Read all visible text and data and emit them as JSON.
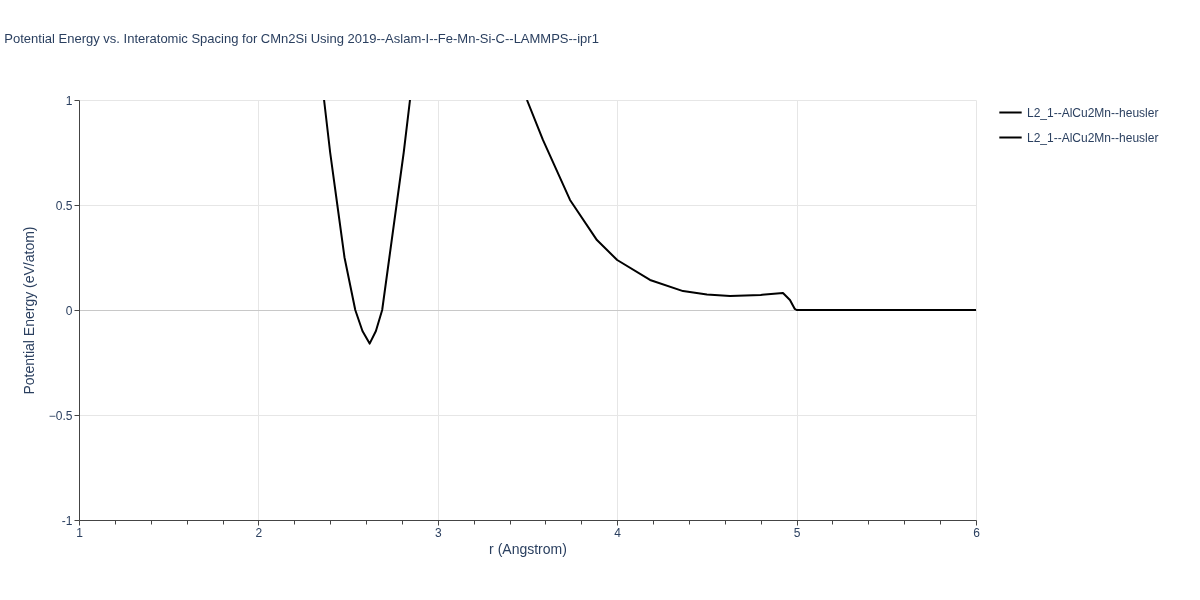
{
  "chart_data": {
    "type": "line",
    "title": "Potential Energy vs. Interatomic Spacing for CMn2Si Using 2019--Aslam-I--Fe-Mn-Si-C--LAMMPS--ipr1",
    "xlabel": "r (Angstrom)",
    "ylabel": "Potential Energy (eV/atom)",
    "xlim": [
      1,
      6
    ],
    "ylim": [
      -1,
      1
    ],
    "xticks": [
      1,
      {
        "value": 1.2,
        "label": null
      },
      {
        "value": 1.4,
        "label": null
      },
      {
        "value": 1.6,
        "label": null
      },
      {
        "value": 1.8,
        "label": null
      },
      2,
      {
        "value": 2.2,
        "label": null
      },
      {
        "value": 2.4,
        "label": null
      },
      {
        "value": 2.6,
        "label": null
      },
      {
        "value": 2.8,
        "label": null
      },
      3,
      {
        "value": 3.2,
        "label": null
      },
      {
        "value": 3.4,
        "label": null
      },
      {
        "value": 3.6,
        "label": null
      },
      {
        "value": 3.8,
        "label": null
      },
      4,
      {
        "value": 4.2,
        "label": null
      },
      {
        "value": 4.4,
        "label": null
      },
      {
        "value": 4.6,
        "label": null
      },
      {
        "value": 4.8,
        "label": null
      },
      5,
      {
        "value": 5.2,
        "label": null
      },
      {
        "value": 5.4,
        "label": null
      },
      {
        "value": 5.6,
        "label": null
      },
      {
        "value": 5.8,
        "label": null
      },
      6
    ],
    "yticks": [
      -1,
      {
        "value": -0.5,
        "label": "−0.5"
      },
      0,
      0.5,
      1
    ],
    "grid": true,
    "legend": "top right",
    "marker": "none",
    "line_style": "solid",
    "series": [
      {
        "name": "L2_1--AlCu2Mn--heusler",
        "color": "#000000",
        "x": [
          2.366,
          2.4,
          2.44,
          2.48,
          2.54,
          2.58,
          2.62,
          2.655,
          2.69,
          2.73,
          2.77,
          2.81,
          2.845
        ],
        "values": [
          1,
          0.75,
          0.5,
          0.25,
          0,
          -0.1,
          -0.16,
          -0.1,
          0,
          0.25,
          0.5,
          0.75,
          1
        ]
      },
      {
        "name": "L2_1--AlCu2Mn--heusler",
        "color": "#000000",
        "x": [
          3.497,
          3.586,
          3.737,
          3.887,
          4.0,
          4.183,
          4.367,
          4.5,
          4.629,
          4.8,
          4.924,
          4.963,
          4.99,
          5.0,
          5.5,
          6.0
        ],
        "values": [
          1,
          0.81,
          0.524,
          0.333,
          0.238,
          0.143,
          0.09,
          0.074,
          0.067,
          0.072,
          0.081,
          0.048,
          0.005,
          0,
          0,
          0
        ]
      }
    ]
  }
}
